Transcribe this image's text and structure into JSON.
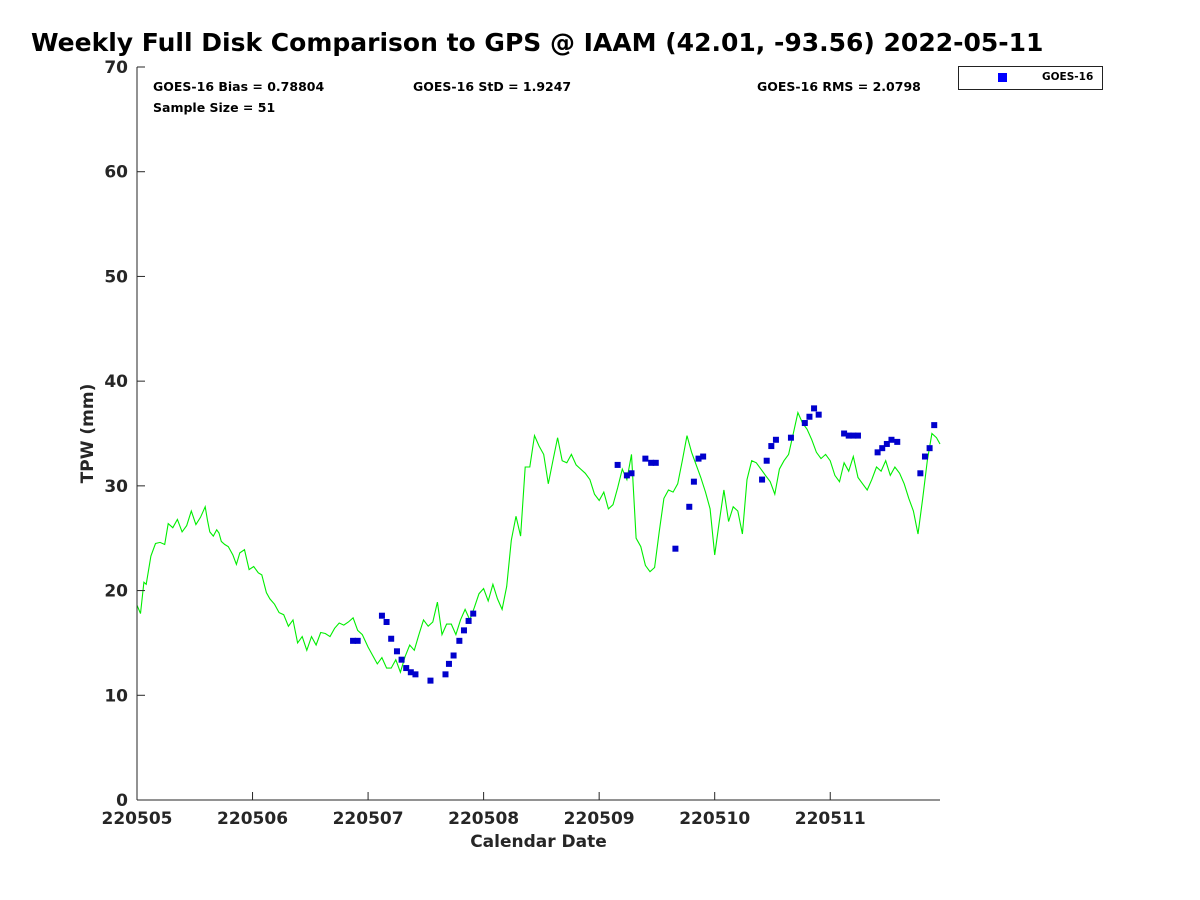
{
  "title": "Weekly Full Disk Comparison to GPS @ IAAM (42.01, -93.56) 2022-05-11",
  "stats": {
    "bias": "GOES-16 Bias = 0.78804",
    "std": "GOES-16 StD = 1.9247",
    "rms": "GOES-16 RMS = 2.0798",
    "sample": "Sample Size = 51"
  },
  "legend": {
    "label": "GOES-16",
    "marker_color": "#0000ff"
  },
  "colors": {
    "gps_line": "#00ee00",
    "goes_marker": "#0000cc",
    "axis": "#262626"
  },
  "chart_data": {
    "type": "scatter",
    "xlabel": "Calendar Date",
    "ylabel": "TPW (mm)",
    "xlim": [
      5.0,
      11.95
    ],
    "ylim": [
      0,
      70
    ],
    "x_ticks": [
      5,
      6,
      7,
      8,
      9,
      10,
      11
    ],
    "x_tick_labels": [
      "220505",
      "220506",
      "220507",
      "220508",
      "220509",
      "220510",
      "220511"
    ],
    "y_ticks": [
      0,
      10,
      20,
      30,
      40,
      50,
      60,
      70
    ],
    "y_tick_labels": [
      "0",
      "10",
      "20",
      "30",
      "40",
      "50",
      "60",
      "70"
    ],
    "legend_position": "top-right outside",
    "series": [
      {
        "style": "line",
        "x": [
          5.0,
          5.03,
          5.06,
          5.08,
          5.12,
          5.16,
          5.2,
          5.24,
          5.27,
          5.31,
          5.35,
          5.39,
          5.43,
          5.47,
          5.51,
          5.55,
          5.59,
          5.61,
          5.63,
          5.66,
          5.69,
          5.71,
          5.73,
          5.76,
          5.79,
          5.83,
          5.86,
          5.89,
          5.93,
          5.97,
          6.01,
          6.05,
          6.08,
          6.12,
          6.15,
          6.19,
          6.23,
          6.27,
          6.31,
          6.35,
          6.39,
          6.43,
          6.47,
          6.51,
          6.55,
          6.59,
          6.63,
          6.67,
          6.71,
          6.75,
          6.79,
          6.83,
          6.87,
          6.91,
          6.95,
          7.0,
          7.04,
          7.08,
          7.12,
          7.16,
          7.2,
          7.24,
          7.28,
          7.32,
          7.36,
          7.4,
          7.44,
          7.48,
          7.52,
          7.56,
          7.6,
          7.64,
          7.68,
          7.72,
          7.76,
          7.8,
          7.84,
          7.88,
          7.92,
          7.96,
          8.0,
          8.04,
          8.08,
          8.12,
          8.16,
          8.2,
          8.24,
          8.28,
          8.32,
          8.36,
          8.4,
          8.44,
          8.48,
          8.52,
          8.56,
          8.6,
          8.64,
          8.68,
          8.72,
          8.76,
          8.8,
          8.84,
          8.88,
          8.92,
          8.96,
          9.0,
          9.04,
          9.08,
          9.12,
          9.16,
          9.2,
          9.24,
          9.28,
          9.32,
          9.36,
          9.4,
          9.44,
          9.48,
          9.52,
          9.56,
          9.6,
          9.64,
          9.68,
          9.72,
          9.76,
          9.8,
          9.84,
          9.88,
          9.92,
          9.96,
          10.0,
          10.04,
          10.08,
          10.12,
          10.16,
          10.2,
          10.24,
          10.28,
          10.32,
          10.36,
          10.4,
          10.44,
          10.48,
          10.52,
          10.56,
          10.6,
          10.64,
          10.68,
          10.72,
          10.76,
          10.8,
          10.84,
          10.88,
          10.92,
          10.96,
          11.0,
          11.04,
          11.08,
          11.12,
          11.16,
          11.2,
          11.24,
          11.28,
          11.32,
          11.36,
          11.4,
          11.44,
          11.48,
          11.52,
          11.56,
          11.6,
          11.64,
          11.68,
          11.72,
          11.76,
          11.8,
          11.84,
          11.88,
          11.92,
          11.95
        ],
        "y": [
          18.6,
          17.8,
          20.8,
          20.6,
          23.3,
          24.5,
          24.6,
          24.4,
          26.4,
          26.0,
          26.8,
          25.6,
          26.2,
          27.6,
          26.3,
          27.0,
          28.0,
          26.7,
          25.6,
          25.2,
          25.8,
          25.5,
          24.7,
          24.4,
          24.2,
          23.4,
          22.5,
          23.6,
          23.9,
          22.0,
          22.3,
          21.7,
          21.5,
          19.8,
          19.2,
          18.7,
          17.9,
          17.7,
          16.6,
          17.2,
          15.0,
          15.6,
          14.3,
          15.6,
          14.8,
          16.0,
          15.9,
          15.6,
          16.4,
          16.9,
          16.7,
          17.0,
          17.4,
          16.2,
          15.8,
          14.6,
          13.8,
          13.0,
          13.6,
          12.6,
          12.6,
          13.4,
          12.2,
          13.7,
          14.8,
          14.3,
          15.8,
          17.2,
          16.6,
          17.0,
          18.9,
          15.8,
          16.8,
          16.8,
          15.8,
          17.2,
          18.2,
          17.2,
          18.4,
          19.7,
          20.2,
          19.0,
          20.6,
          19.2,
          18.2,
          20.4,
          24.8,
          27.1,
          25.2,
          31.8,
          31.8,
          34.8,
          33.8,
          33.0,
          30.2,
          32.4,
          34.6,
          32.4,
          32.2,
          33.0,
          32.0,
          31.6,
          31.2,
          30.6,
          29.2,
          28.6,
          29.4,
          27.8,
          28.2,
          29.8,
          31.6,
          30.6,
          33.0,
          25.0,
          24.2,
          22.4,
          21.8,
          22.2,
          25.6,
          28.8,
          29.6,
          29.4,
          30.2,
          32.4,
          34.8,
          33.2,
          32.0,
          30.8,
          29.4,
          27.8,
          23.4,
          26.6,
          29.6,
          26.6,
          28.0,
          27.6,
          25.4,
          30.6,
          32.4,
          32.2,
          31.6,
          31.0,
          30.4,
          29.2,
          31.6,
          32.4,
          33.0,
          35.0,
          37.0,
          36.0,
          35.4,
          34.4,
          33.2,
          32.6,
          33.0,
          32.4,
          31.0,
          30.4,
          32.2,
          31.4,
          32.8,
          30.8,
          30.2,
          29.6,
          30.6,
          31.8,
          31.4,
          32.4,
          31.0,
          31.8,
          31.2,
          30.2,
          28.8,
          27.6,
          25.4,
          28.8,
          32.4,
          35.0,
          34.6,
          34.0
        ]
      },
      {
        "name": "GOES-16",
        "style": "marker",
        "x": [
          6.87,
          6.91,
          7.12,
          7.16,
          7.2,
          7.25,
          7.29,
          7.33,
          7.37,
          7.41,
          7.54,
          7.67,
          7.7,
          7.74,
          7.79,
          7.83,
          7.87,
          7.91,
          9.16,
          9.24,
          9.28,
          9.4,
          9.45,
          9.49,
          9.66,
          9.78,
          9.82,
          9.86,
          9.9,
          10.41,
          10.45,
          10.49,
          10.53,
          10.66,
          10.78,
          10.82,
          10.86,
          10.9,
          11.12,
          11.16,
          11.2,
          11.24,
          11.41,
          11.45,
          11.49,
          11.53,
          11.58,
          11.78,
          11.82,
          11.86,
          11.9
        ],
        "y": [
          15.2,
          15.2,
          17.6,
          17.0,
          15.4,
          14.2,
          13.4,
          12.6,
          12.2,
          12.0,
          11.4,
          12.0,
          13.0,
          13.8,
          15.2,
          16.2,
          17.1,
          17.8,
          32.0,
          31.0,
          31.2,
          32.6,
          32.2,
          32.2,
          24.0,
          28.0,
          30.4,
          32.6,
          32.8,
          30.6,
          32.4,
          33.8,
          34.4,
          34.6,
          36.0,
          36.6,
          37.4,
          36.8,
          35.0,
          34.8,
          34.8,
          34.8,
          33.2,
          33.6,
          34.0,
          34.4,
          34.2,
          31.2,
          32.8,
          33.6,
          35.8
        ]
      }
    ]
  }
}
